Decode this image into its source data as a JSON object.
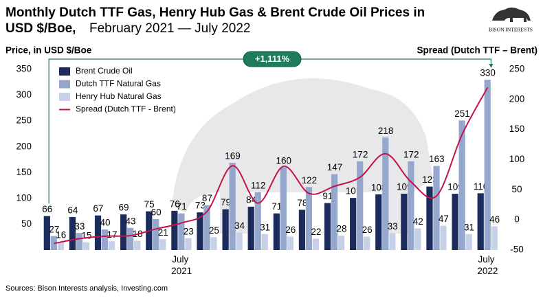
{
  "chart_data": {
    "type": "bar",
    "title": "Monthly Dutch TTF Gas, Henry Hub Gas & Brent Crude Oil Prices in",
    "title_line2": "USD $/Boe,",
    "subtitle": "February 2021 — July 2022",
    "logo": "BISON INTERESTS",
    "y_label": "Price, in USD $/Boe",
    "y2_label": "Spread (Dutch TTF – Brent)",
    "annotation": "+1,111%",
    "source": "Sources: Bison Interests analysis, Investing.com",
    "categories": [
      null,
      null,
      null,
      null,
      null,
      "July 2021",
      null,
      null,
      null,
      null,
      null,
      null,
      null,
      null,
      null,
      null,
      null,
      "July 2022"
    ],
    "series": [
      {
        "name": "Brent Crude Oil",
        "color": "#1b2b5c",
        "values": [
          66,
          64,
          67,
          69,
          75,
          76,
          73,
          79,
          84,
          71,
          78,
          91,
          101,
          108,
          109,
          123,
          109,
          110
        ]
      },
      {
        "name": "Dutch TTF Natural Gas",
        "color": "#95a7cd",
        "values": [
          27,
          33,
          40,
          43,
          60,
          71,
          87,
          169,
          112,
          160,
          122,
          147,
          172,
          218,
          172,
          163,
          251,
          330
        ]
      },
      {
        "name": "Henry Hub Natural Gas",
        "color": "#c6d0e7",
        "values": [
          16,
          15,
          17,
          18,
          21,
          23,
          25,
          34,
          31,
          26,
          22,
          28,
          26,
          33,
          42,
          47,
          31,
          46
        ]
      },
      {
        "name": "Spread (Dutch TTF - Brent)",
        "color": "#c2134b",
        "type": "line",
        "axis": "y2",
        "values": [
          -39,
          -31,
          -27,
          -26,
          -15,
          -5,
          14,
          90,
          28,
          89,
          44,
          56,
          71,
          110,
          63,
          40,
          142,
          220
        ]
      }
    ],
    "ylim": [
      0,
      350
    ],
    "yticks": [
      50,
      100,
      150,
      200,
      250,
      300,
      350
    ],
    "y2lim": [
      -50,
      250
    ],
    "y2ticks": [
      -50,
      0,
      50,
      100,
      150,
      200,
      250
    ],
    "legend": "upper left",
    "annotation_color": "#1e7b5d"
  }
}
